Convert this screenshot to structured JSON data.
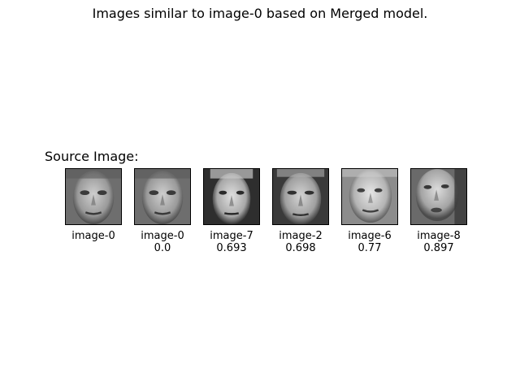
{
  "figure": {
    "title": "Images similar to image-0 based on Merged model.",
    "source_label": "Source Image:"
  },
  "images": [
    {
      "name": "image-0",
      "score": "",
      "icon": "face-photo-icon"
    },
    {
      "name": "image-0",
      "score": "0.0",
      "icon": "face-photo-icon"
    },
    {
      "name": "image-7",
      "score": "0.693",
      "icon": "face-photo-icon"
    },
    {
      "name": "image-2",
      "score": "0.698",
      "icon": "face-photo-icon"
    },
    {
      "name": "image-6",
      "score": "0.77",
      "icon": "face-photo-icon"
    },
    {
      "name": "image-8",
      "score": "0.897",
      "icon": "face-photo-icon"
    }
  ],
  "colors": {
    "background": "#ffffff",
    "text": "#000000",
    "border": "#000000"
  }
}
